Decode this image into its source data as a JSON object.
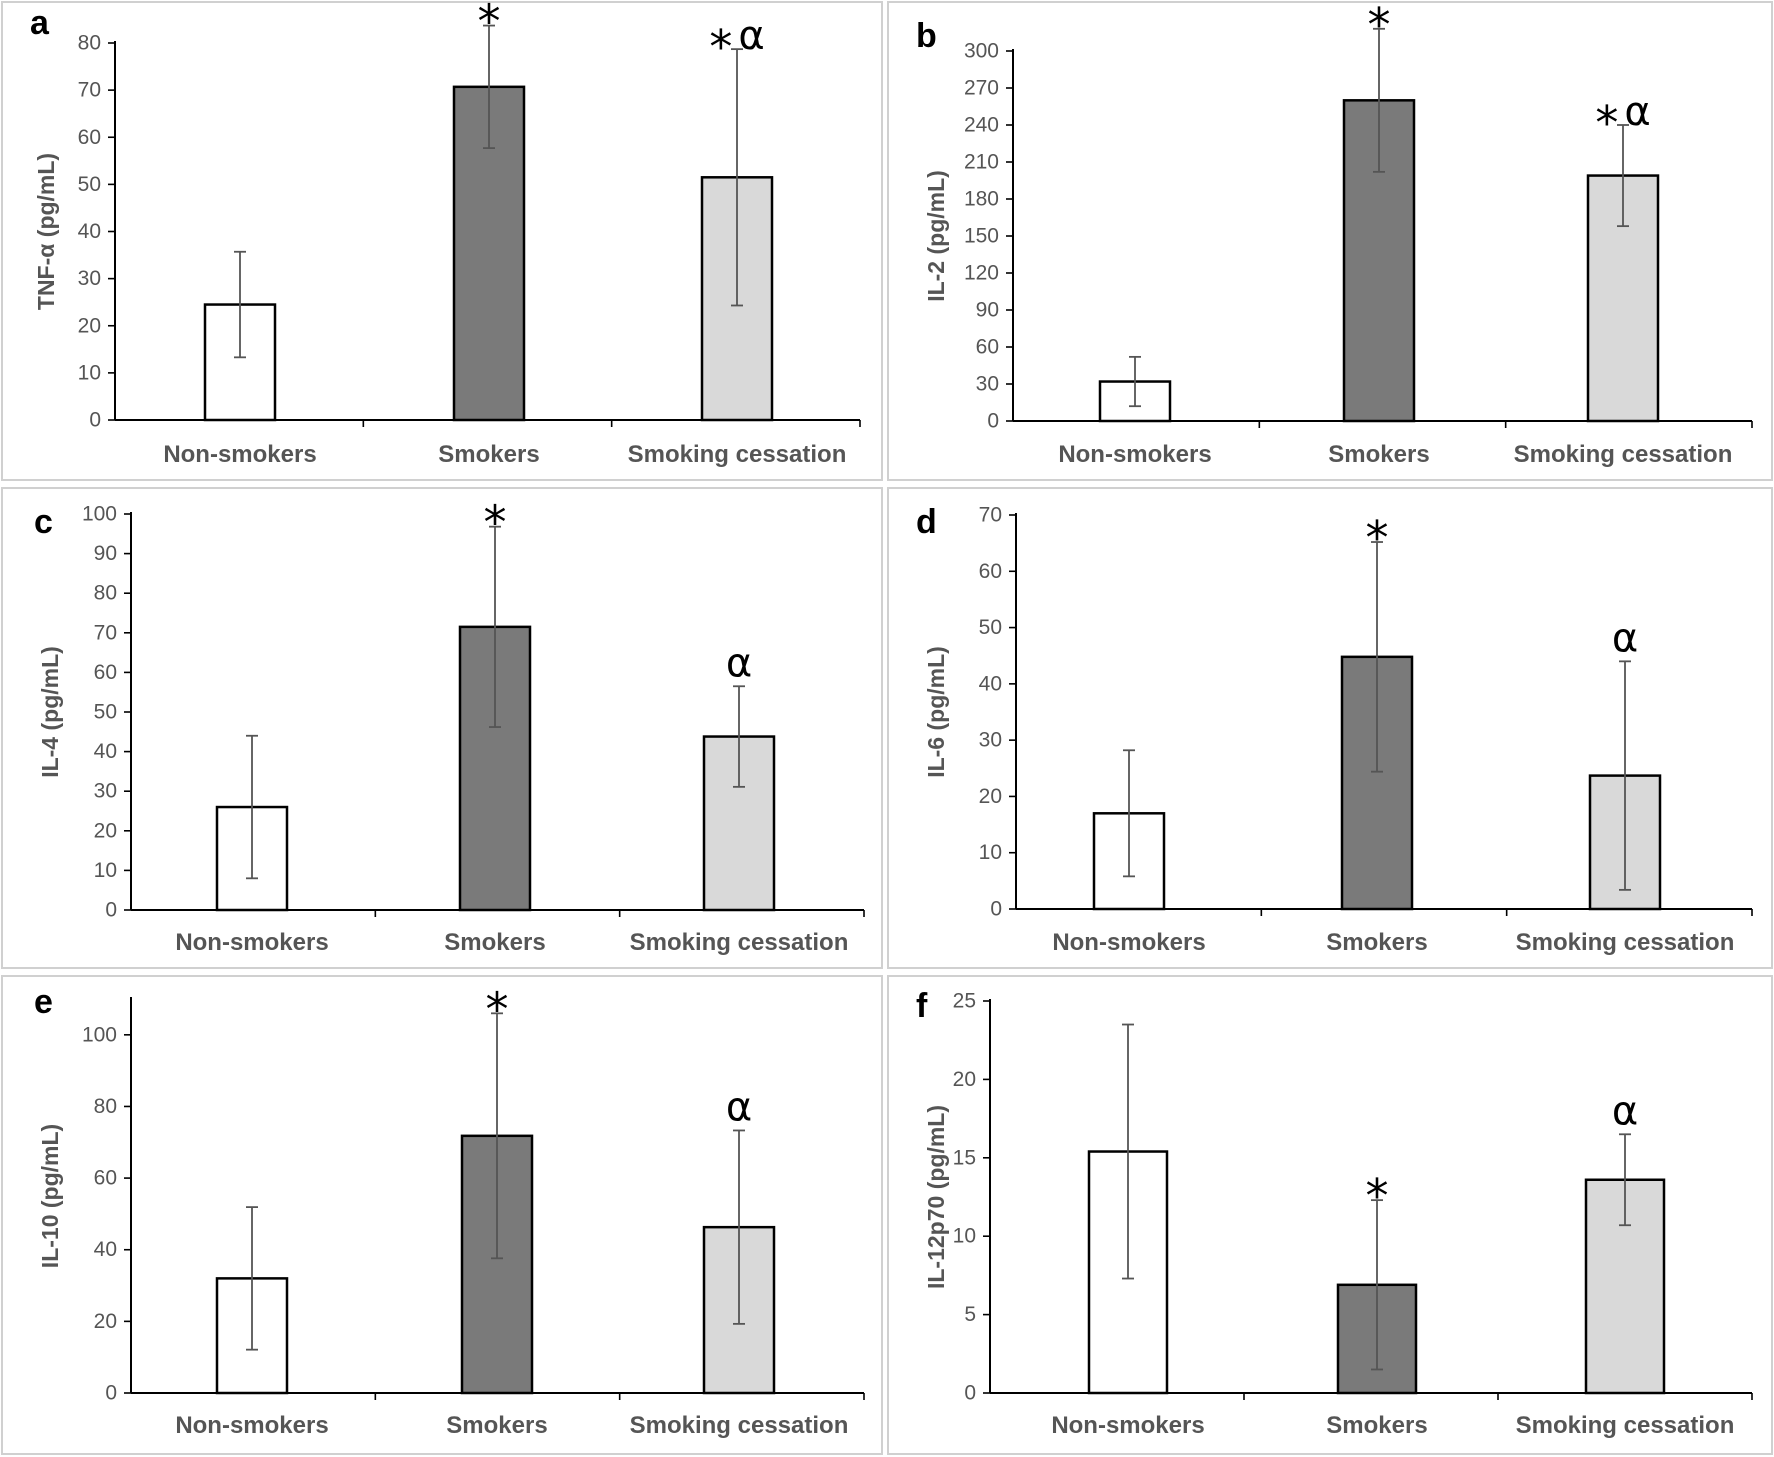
{
  "colors": {
    "non_smokers": "#ffffff",
    "smokers": "#7a7a7a",
    "smoking_cessation": "#d9d9d9"
  },
  "chart_data": [
    {
      "type": "bar",
      "panel": "a",
      "ylabel": "TNF-α (pg/mL)",
      "categories": [
        "Non-smokers",
        "Smokers",
        "Smoking cessation"
      ],
      "values": [
        24.5,
        70.7,
        51.5
      ],
      "errors": [
        11.2,
        13.0,
        27.2
      ],
      "ylim": [
        0,
        80
      ],
      "yticks": [
        0,
        10,
        20,
        30,
        40,
        50,
        60,
        70,
        80
      ],
      "annotations": [
        "",
        "*",
        "*α"
      ]
    },
    {
      "type": "bar",
      "panel": "b",
      "ylabel": "IL-2 (pg/mL)",
      "categories": [
        "Non-smokers",
        "Smokers",
        "Smoking cessation"
      ],
      "values": [
        32,
        260,
        199
      ],
      "errors": [
        20,
        58,
        41
      ],
      "ylim": [
        0,
        300
      ],
      "yticks": [
        0,
        30,
        60,
        90,
        120,
        150,
        180,
        210,
        240,
        270,
        300
      ],
      "annotations": [
        "",
        "*",
        "*α"
      ]
    },
    {
      "type": "bar",
      "panel": "c",
      "ylabel": "IL-4 (pg/mL)",
      "categories": [
        "Non-smokers",
        "Smokers",
        "Smoking cessation"
      ],
      "values": [
        26,
        71.5,
        43.8
      ],
      "errors": [
        18,
        25.3,
        12.7
      ],
      "ylim": [
        0,
        100
      ],
      "yticks": [
        0,
        10,
        20,
        30,
        40,
        50,
        60,
        70,
        80,
        90,
        100
      ],
      "annotations": [
        "",
        "*",
        "α"
      ]
    },
    {
      "type": "bar",
      "panel": "d",
      "ylabel": "IL-6 (pg/mL)",
      "categories": [
        "Non-smokers",
        "Smokers",
        "Smoking cessation"
      ],
      "values": [
        17,
        44.8,
        23.7
      ],
      "errors": [
        11.2,
        20.4,
        20.3
      ],
      "ylim": [
        0,
        70
      ],
      "yticks": [
        0,
        10,
        20,
        30,
        40,
        50,
        60,
        70
      ],
      "annotations": [
        "",
        "*",
        "α"
      ]
    },
    {
      "type": "bar",
      "panel": "e",
      "ylabel": "IL-10 (pg/mL)",
      "categories": [
        "Non-smokers",
        "Smokers",
        "Smoking cessation"
      ],
      "values": [
        32,
        71.8,
        46.3
      ],
      "errors": [
        19.9,
        34.2,
        27
      ],
      "ylim": [
        0,
        110
      ],
      "yticks": [
        0,
        20,
        40,
        60,
        80,
        100
      ],
      "annotations": [
        "",
        "*",
        "α"
      ]
    },
    {
      "type": "bar",
      "panel": "f",
      "ylabel": "IL-12p70 (pg/mL)",
      "categories": [
        "Non-smokers",
        "Smokers",
        "Smoking cessation"
      ],
      "values": [
        15.4,
        6.9,
        13.6
      ],
      "errors": [
        8.1,
        5.4,
        2.9
      ],
      "ylim": [
        0,
        25
      ],
      "yticks": [
        0,
        5,
        10,
        15,
        20,
        25
      ],
      "annotations": [
        "",
        "*",
        "α"
      ]
    }
  ]
}
